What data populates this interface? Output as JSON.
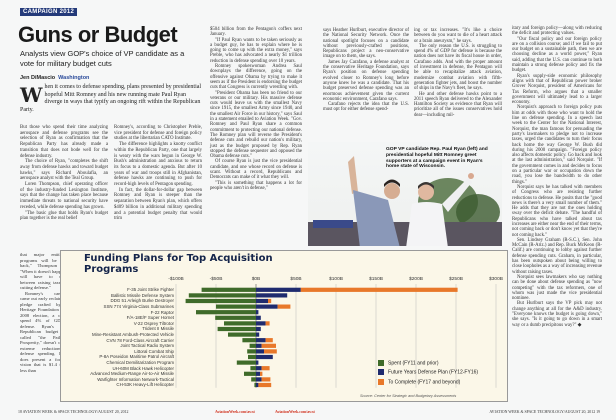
{
  "kicker": "CAMPAIGN 2012",
  "headline": "Guns or Budget",
  "deck": "Analysts view GOP's choice of VP candidate as a vote for military budget cuts",
  "byline": {
    "author": "Jen DiMascio",
    "place": "Washington"
  },
  "lede": {
    "dropcap": "W",
    "text": "hen it comes to defense spending, plans presented by presidential hopeful Mitt Romney and his new running mate Paul Ryan diverge in ways that typify an ongoing rift within the Republican Party."
  },
  "columns": {
    "a": [
      "But those who spend their time analyzing aerospace and defense programs see the selection of Ryan as confirmation that the Republican Party has already made a transition that does not bode well for the defense industry.",
      "The choice of Ryan, \"completes the shift away from defense hawks and toward budget hawks,\" says Richard Aboulafia, an aerospace analyst with the Teal Group.",
      "Loren Thompson, chief operating officer of the industry-funded Lexington Institute, says that the change has taken place because immediate threats to national security have receded, while defense spending has grown.",
      "\"The basic glue that holds Ryan's budget plan together is the real belief"
    ],
    "a2": [
      "that major entitlement programs will be scaled back,\" Thompson says. \"When it doesn't happen, he will have to choose between raising taxes and cutting defense.\"",
      "Romney's campaign came out early reclaiming a pledge crafted by the Heritage Foundation in the 2008 election, a call to spend 4% of GDP on defense. Ryan's House Republican budget plan, called \"the Path to Prosperity,\" doesn't call for extreme reductions in defense spending. But it does present a four-year vision that is $1.4 trillion less than"
    ],
    "b": [
      "Romney's, according to Christopher Preble, vice president for defense and foreign policy studies at the libertarian CATO Institute.",
      "The difference highlights a knotty conflict within the Republican Party, one that largely is weary with the wars begun in George W. Bush's administration and anxious to return its focus to a domestic agenda. But after 10 years of war and troops still in Afghanistan, defense hawks are continuing to push for record-high levels of Pentagon spending.",
      "In fact, the dollar-for-dollar gap between Romney and Ryan is steeper than the separation between Ryan's plan, which offers $409 billion in additional military spending and a potential budget penalty that would trim"
    ],
    "c": [
      "$504 billion from the Pentagon's coffers next January.",
      "\"If Paul Ryan wants to be taken seriously as a budget guy, he has to explain where he is going to come up with the extra money,\" says Preble, who has advocated a nearly $1 trillion reduction in defense spending over 10 years.",
      "Romney spokeswoman Andrea Saul downplays the difference, going on the offensive against Obama by trying to make it seem as if the President is endorsing the budget cuts that Congress is currently wrestling with.",
      "\"President Obama has been no friend to our veterans or our military. His massive defense cuts would leave us with the smallest Navy since 1915, the smallest Army since 1940, and the smallest Air Force in our history,\" says Saul in a statement emailed to Aviation Week. \"Gov. Romney and Paul Ryan share a common commitment to protecting our national defense. The Romney plan will reverse the President's defense cuts and rebuild our nation's military, just as the budget proposed by Rep. Ryan stopped the defense sequester and opposed the Obama defense cuts.\"",
      "Of course Ryan is just the vice presidential candidate, and one whose record on defense is scant. Without a record, Republicans and Democrats can make of it what they will.",
      "\"This is something that happens a lot for people who aren't in defense,\""
    ],
    "d": [
      "says Heather Hurlburt, executive director of the National Security Network. Once the national spotlight focuses on a candidate without previously-crafted positions, Republicans project a neo-conservative image on to them, she says.",
      "James Jay Carafano, a defense analyst at the conservative Heritage Foundation, says Ryan's position on defense spending evolved closer to Romney's long before anyone knew he was a candidate. That his budget preserved defense spending was an enormous achievement given the current economic environment, Carafano says.",
      "Carafano rejects the idea that the U.S. must opt for either defense spend-"
    ],
    "e": [
      "ing or tax increases. \"It's like a choice between do you want to die of a heart attack or a brain aneurysm,\" he says.",
      "The only reason the U.S. is struggling to spend 4% of GDP for defense is because the nation does not have its fiscal house in order, Carafano adds. And with the proper amount of investment in defense, the Pentagon will be able to recapitalize attack aviation, modernize combat aviation with fifth-generation fighter jets, and boost the number of ships in the Navy's fleet, he says.",
      "He and other defense hawks point to a 2011 speech Ryan delivered to the Alexander Hamilton Society as evidence that Ryan will prioritize all of the issues conservatives hold dear—including mil-"
    ],
    "f": [
      "itary and foreign policy—along with reducing the deficit and protecting values.",
      "\"Our fiscal policy and our foreign policy are on a collision course; and if we fail to put our budget on a sustainable path, then we are choosing decline as a world power,\" Ryan said, adding that the U.S. can continue to both maintain a strong defense policy and fix the budget.",
      "Ryan's supply-side economic philosophy aligns with that of Republican power broker Grover Norquist, president of Americans for Tax Reform, who argues that a smaller government will ultimately lead to a larger economy.",
      "Norquist's approach to foreign policy puts him at odds with those who want to hold the line on defense spending. In a speech last week to the Center for the National Interest, Norquist, the man famous for persuading the party's lawmakers to pledge not to increase taxes, urged the candidates to turn their focus back home the way George W. Bush did during his 2000 campaign. \"Foreign policy also affects domestic policy. Go back and look at the last administration,\" said Norquist. \"If the government comes in and decides to focus on a particular war or occupation down the road, you lose the bandwidth to do other things.\"",
      "Norquist says he has talked with members of Congress who are resisting further reductions to defense. He posits that the \"good news is there's a very small number of them.\" He adds that they are not the ones holding sway over the deficit debate. \"The handful of Republicans who have talked about tax increases are either near the end of their terms, not coming back or don't know yet that they're not coming back.\"",
      "Sen. Lindsey Graham (R-S.C.), Sen. John McCain (R-Ariz.) and Rep. Buck McKeon (R-Calif.) are continuing to lobby against further defense spending cuts. Graham, in particular, has been outspoken about being willing to close loopholes as a way of increasing revenue without raising taxes.",
      "Norquist sees lawmakers who say nothing can be done about defense spending as \"now competing\" with the tax reformers, one of whom was just made the vice presidential nominee.",
      "But Hurlburt says the VP pick may not change anything at all for the A&D industry. \"Everyone knows the budget is going down,\" she says. \"Is it going to go down in a smart way or a dumb precipitous way?\" ◆"
    ]
  },
  "photo": {
    "caption": "GOP VP candidate Rep. Paul Ryan (left) and presidential hopeful Mitt Romney greet supporters at a campaign event in Ryan's home state of Wisconsin."
  },
  "chart_data": {
    "type": "bar",
    "orientation": "horizontal-stacked",
    "title": "Funding Plans for Top Acquisition Programs",
    "xlim": [
      -100,
      300
    ],
    "xticks": [
      -100,
      -50,
      0,
      50,
      100,
      150,
      200,
      250,
      300
    ],
    "xtick_labels": [
      "-$100B",
      "-$50B",
      "$0B",
      "$50B",
      "$100B",
      "$150B",
      "$200B",
      "$250B",
      "$300B"
    ],
    "categories": [
      "F-35 Joint Strike Fighter",
      "Ballistic Missile Defense System",
      "DDG 51 Arleigh Burke Destroyer",
      "SSN 774 Virginia-Class Submarines",
      "F-22 Raptor",
      "F/A-18E/F Super Hornet",
      "V-22 Osprey Tiltrotor",
      "Trident II Missile",
      "Mine-Resistant Ambush-Protected Vehicle",
      "CVN 78 Ford-Class Aircraft Carrier",
      "Joint Tactical Radio System",
      "Littoral Combat Ship",
      "P-8A Poseidon Maritime Patrol Aircraft",
      "Chemical Demilitarization Program",
      "UH-60M Black Hawk Helicopter",
      "Advanced Medium-Range Air-to-Air Missile",
      "Warfighter Information Network-Tactical",
      "CH-53K Heavy-Lift Helicopter"
    ],
    "series": [
      {
        "name": "Spent (FY11 and prior)",
        "color": "#3f6b2a",
        "values": [
          -68,
          -84,
          -88,
          -50,
          -75,
          -51,
          -40,
          -48,
          -35,
          -17,
          -8,
          -11,
          -10,
          -24,
          -7,
          -15,
          -6,
          -2
        ]
      },
      {
        "name": "Future Years Defense Plan (FY12-FY16)",
        "color": "#1f2b6e",
        "values": [
          56,
          39,
          15,
          27,
          3,
          6,
          12,
          6,
          4,
          12,
          7,
          10,
          21,
          3,
          7,
          5,
          7,
          3
        ]
      },
      {
        "name": "To Complete (FY17 and beyond)",
        "color": "#e8782a",
        "values": [
          196,
          0,
          4,
          16,
          0,
          0,
          5,
          0,
          0,
          9,
          18,
          16,
          0,
          0,
          10,
          3,
          11,
          16
        ]
      }
    ],
    "legend_position": "bottom-right",
    "grid": true,
    "source": "Source: Center for Strategic and Budgetary Assessments"
  },
  "footer": {
    "left": "18  AVIATION WEEK & SPACE TECHNOLOGY/AUGUST 20, 2012",
    "link1": "AviationWeek.com/awst",
    "link2": "AviationWeek.com/awst",
    "right": "AVIATION WEEK & SPACE TECHNOLOGY/AUGUST 20, 2012  19"
  }
}
